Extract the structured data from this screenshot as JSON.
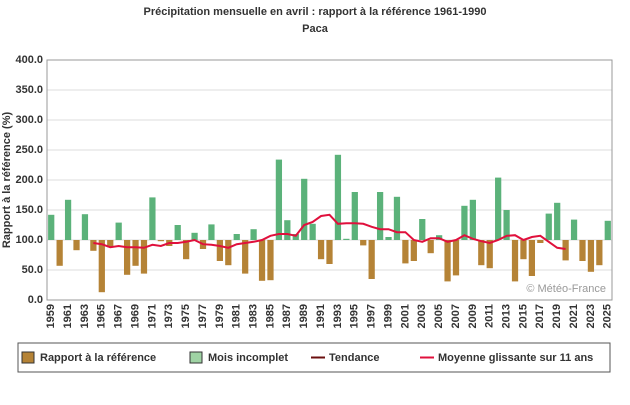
{
  "chart_data": {
    "type": "bar",
    "title": "Précipitation mensuelle en avril : rapport à la référence 1961-1990",
    "subtitle": "Paca",
    "y_label": "Rapport à la référence (%)",
    "watermark": "© Météo-France",
    "categories": [
      "1959",
      null,
      "1961",
      null,
      "1963",
      null,
      "1965",
      null,
      "1967",
      null,
      "1969",
      null,
      "1971",
      null,
      "1973",
      null,
      "1975",
      null,
      "1977",
      null,
      "1979",
      null,
      "1981",
      null,
      "1983",
      null,
      "1985",
      null,
      "1987",
      null,
      "1989",
      null,
      "1991",
      null,
      "1993",
      null,
      "1995",
      null,
      "1997",
      null,
      "1999",
      null,
      "2001",
      null,
      "2003",
      null,
      "2005",
      null,
      "2007",
      null,
      "2009",
      null,
      "2011",
      null,
      "2013",
      null,
      "2015",
      null,
      "2017",
      null,
      "2019",
      null,
      "2021",
      null,
      "2023",
      null,
      "2025"
    ],
    "values": [
      142,
      57,
      167,
      83,
      143,
      82,
      13,
      88,
      129,
      42,
      57,
      44,
      171,
      98,
      90,
      125,
      68,
      112,
      85,
      126,
      65,
      58,
      110,
      44,
      118,
      32,
      33,
      234,
      133,
      110,
      202,
      127,
      68,
      60,
      242,
      102,
      180,
      91,
      35,
      180,
      105,
      172,
      61,
      65,
      135,
      78,
      108,
      31,
      41,
      157,
      167,
      58,
      53,
      204,
      150,
      31,
      68,
      40,
      95,
      144,
      162,
      66,
      134,
      65,
      47,
      58,
      132
    ],
    "baseline": 100,
    "colors": {
      "above": "#5bb27a",
      "below": "#b58336"
    },
    "moving_average": {
      "name": "Moyenne glissante sur 11 ans",
      "color": "#e0103c",
      "values": [
        null,
        null,
        null,
        null,
        null,
        95,
        93,
        88,
        90,
        88,
        88,
        87,
        92,
        90,
        95,
        95,
        97,
        100,
        93,
        92,
        90,
        87,
        93,
        95,
        97,
        100,
        107,
        110,
        110,
        107,
        125,
        130,
        140,
        142,
        127,
        128,
        128,
        127,
        122,
        118,
        118,
        113,
        113,
        100,
        97,
        103,
        103,
        97,
        100,
        108,
        102,
        98,
        95,
        100,
        107,
        108,
        100,
        105,
        107,
        97,
        87,
        85,
        null,
        null,
        null,
        null,
        null
      ]
    },
    "legend": [
      {
        "name": "Rapport à la référence",
        "color": "#b58336",
        "kind": "box"
      },
      {
        "name": "Mois incomplet",
        "color": "#9fd3a4",
        "kind": "box"
      },
      {
        "name": "Tendance",
        "color": "#6b0f0f",
        "kind": "line"
      },
      {
        "name": "Moyenne glissante sur 11 ans",
        "color": "#e0103c",
        "kind": "line"
      }
    ],
    "ylim": [
      0,
      400
    ],
    "yticks": [
      {
        "value": 0,
        "label": "0.0"
      },
      {
        "value": 50,
        "label": "50.0"
      },
      {
        "value": 100,
        "label": "100.0"
      },
      {
        "value": 150,
        "label": "150.0"
      },
      {
        "value": 200,
        "label": "200.0"
      },
      {
        "value": 250,
        "label": "250.0"
      },
      {
        "value": 300,
        "label": "300.0"
      },
      {
        "value": 350,
        "label": "350.0"
      },
      {
        "value": 400,
        "label": "400.0"
      }
    ],
    "grid": true
  }
}
